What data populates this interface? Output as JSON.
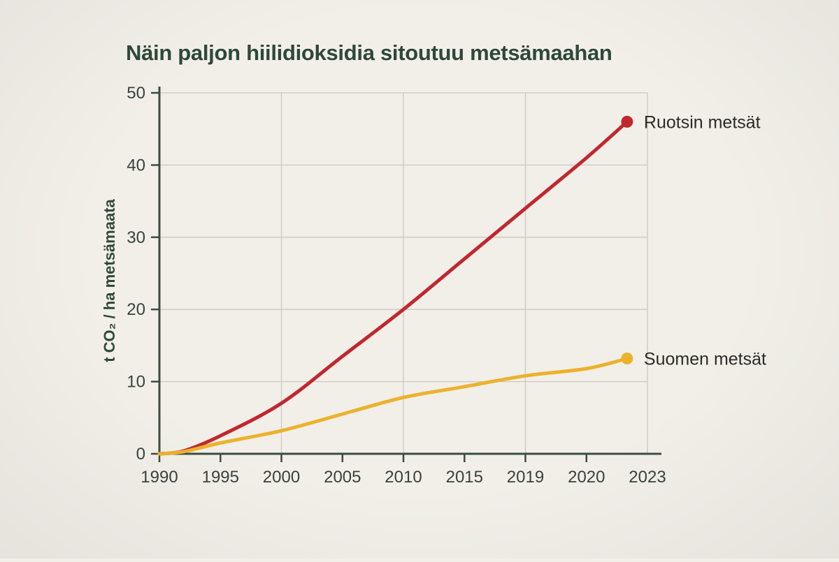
{
  "colors": {
    "background": "#f2efe9",
    "title": "#2e4839",
    "axis": "#3d4b43",
    "tick_label": "#39423c",
    "grid": "#cac8c1",
    "legend_text": "#2b2b27",
    "series_sweden": "#c0282e",
    "series_finland": "#ecb22d"
  },
  "chart_data": {
    "type": "line",
    "title": "Näin paljon hiilidioksidia sitoutuu metsämaahan",
    "xlabel": "",
    "ylabel": "t CO₂ / ha metsämaata",
    "categories": [
      1990,
      1995,
      2000,
      2005,
      2010,
      2015,
      2019,
      2020,
      2023
    ],
    "ylim": [
      0,
      50
    ],
    "yticks": [
      0,
      10,
      20,
      30,
      40,
      50
    ],
    "grid": {
      "horizontal_values": [
        10,
        20,
        30,
        40,
        50
      ],
      "vertical_years": [
        2000,
        2010,
        2019,
        2023
      ]
    },
    "x_ticks_without_mark": [
      2023
    ],
    "legend_position": "end-of-line",
    "series": [
      {
        "name": "Ruotsin metsät",
        "color": "#c0282e",
        "end_value": 46,
        "points": [
          [
            1990,
            0
          ],
          [
            1992,
            0.4
          ],
          [
            1995,
            2.5
          ],
          [
            2000,
            7
          ],
          [
            2005,
            13.5
          ],
          [
            2010,
            20
          ],
          [
            2015,
            27
          ],
          [
            2019,
            34
          ],
          [
            2020,
            41
          ],
          [
            2022,
            46
          ]
        ]
      },
      {
        "name": "Suomen metsät",
        "color": "#ecb22d",
        "end_value": 13.2,
        "points": [
          [
            1990,
            0
          ],
          [
            1992,
            0.3
          ],
          [
            1995,
            1.5
          ],
          [
            2000,
            3.2
          ],
          [
            2005,
            5.5
          ],
          [
            2010,
            7.8
          ],
          [
            2015,
            9.3
          ],
          [
            2019,
            10.8
          ],
          [
            2020,
            11.8
          ],
          [
            2022,
            13.2
          ]
        ]
      }
    ]
  }
}
